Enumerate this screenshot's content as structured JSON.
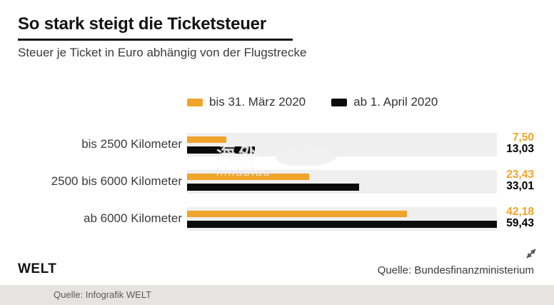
{
  "header": {
    "title": "So stark steigt die Ticketsteuer",
    "subtitle": "Steuer je Ticket in Euro abhängig von der Flugstrecke"
  },
  "chart_data": {
    "type": "bar",
    "orientation": "horizontal",
    "title": "So stark steigt die Ticketsteuer",
    "subtitle": "Steuer je Ticket in Euro abhängig von der Flugstrecke",
    "unit": "Euro je Ticket",
    "categories": [
      "bis 2500 Kilometer",
      "2500 bis 6000 Kilometer",
      "ab 6000 Kilometer"
    ],
    "series": [
      {
        "name": "bis 31. März 2020",
        "color": "#F0A42B",
        "values": [
          7.5,
          23.43,
          42.18
        ],
        "labels": [
          "7,50",
          "23,43",
          "42,18"
        ]
      },
      {
        "name": "ab 1. April 2020",
        "color": "#0B0B0B",
        "values": [
          13.03,
          33.01,
          59.43
        ],
        "labels": [
          "13,03",
          "33,01",
          "59,43"
        ]
      }
    ],
    "xlim": [
      0,
      59.43
    ],
    "grid": false,
    "legend_position": "top-center"
  },
  "watermark": {
    "text": "海外",
    "subtext": "hinablau"
  },
  "footer": {
    "brand": "WELT",
    "source": "Quelle: Bundesfinanzministerium",
    "expand_icon": "diagonal-resize-arrows"
  },
  "bottom_bar": {
    "credit": "Quelle: Infografik WELT"
  },
  "colors": {
    "accent_orange": "#F0A42B",
    "bar_black": "#0B0B0B",
    "row_band": "#EFEFEF",
    "bottom_strip": "#E6E4E1",
    "text_dark": "#141414"
  }
}
